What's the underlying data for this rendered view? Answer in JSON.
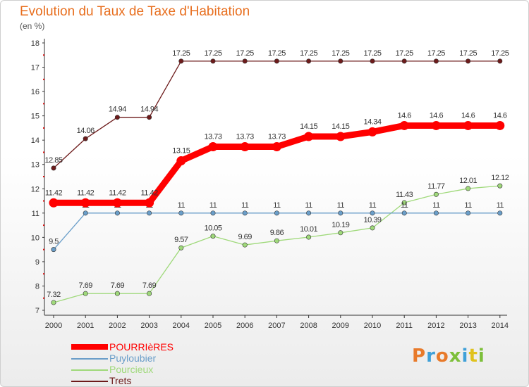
{
  "chart_data": {
    "type": "line",
    "title": "Evolution du Taux de Taxe d'Habitation",
    "ylabel": "(en %)",
    "xlabel": "",
    "categories": [
      "2000",
      "2001",
      "2002",
      "2003",
      "2004",
      "2005",
      "2006",
      "2007",
      "2008",
      "2009",
      "2010",
      "2011",
      "2012",
      "2013",
      "2014"
    ],
    "ylim": [
      7,
      18
    ],
    "yticks": [
      7,
      8,
      9,
      10,
      11,
      12,
      13,
      14,
      15,
      16,
      17,
      18
    ],
    "grid": false,
    "legend_position": "bottom-left",
    "series": [
      {
        "name": "Trets",
        "color": "#6d1b1b",
        "values": [
          12.85,
          14.06,
          14.94,
          14.94,
          17.25,
          17.25,
          17.25,
          17.25,
          17.25,
          17.25,
          17.25,
          17.25,
          17.25,
          17.25,
          17.25
        ],
        "labels": [
          "12.85",
          "14.06",
          "14.94",
          "14.94",
          "17.25",
          "17.25",
          "17.25",
          "17.25",
          "17.25",
          "17.25",
          "17.25",
          "17.25",
          "17.25",
          "17.25",
          "17.25"
        ]
      },
      {
        "name": "Pourcieux",
        "color": "#9fd97a",
        "values": [
          7.32,
          7.69,
          7.69,
          7.69,
          9.57,
          10.05,
          9.69,
          9.86,
          10.01,
          10.19,
          10.39,
          11.43,
          11.77,
          12.01,
          12.12
        ],
        "labels": [
          "7.32",
          "7.69",
          "7.69",
          "7.69",
          "9.57",
          "10.05",
          "9.69",
          "9.86",
          "10.01",
          "10.19",
          "10.39",
          "11.43",
          "11.77",
          "12.01",
          "12.12"
        ]
      },
      {
        "name": "Puyloubier",
        "color": "#6a9ec9",
        "values": [
          9.5,
          11,
          11,
          11,
          11,
          11,
          11,
          11,
          11,
          11,
          11,
          11,
          11,
          11,
          11
        ],
        "labels": [
          "9.5",
          "11",
          "11",
          "11",
          "11",
          "11",
          "11",
          "11",
          "11",
          "11",
          "11",
          "11",
          "11",
          "11",
          "11"
        ]
      },
      {
        "name": "POURRIèRES",
        "color": "#ff0000",
        "values": [
          11.42,
          11.42,
          11.42,
          11.42,
          13.15,
          13.73,
          13.73,
          13.73,
          14.15,
          14.15,
          14.34,
          14.6,
          14.6,
          14.6,
          14.6
        ],
        "labels": [
          "11.42",
          "11.42",
          "11.42",
          "11.42",
          "13.15",
          "13.73",
          "13.73",
          "13.73",
          "14.15",
          "14.15",
          "14.34",
          "14.6",
          "14.6",
          "14.6",
          "14.6"
        ]
      }
    ]
  },
  "legend": [
    {
      "name": "POURRIèRES",
      "color": "#ff0000"
    },
    {
      "name": "Puyloubier",
      "color": "#6a9ec9"
    },
    {
      "name": "Pourcieux",
      "color": "#9fd97a"
    },
    {
      "name": "Trets",
      "color": "#6d1b1b"
    }
  ],
  "logo": {
    "text": "Proxiti",
    "colors": [
      "#e87a2a",
      "#3fa0d8",
      "#e87a2a",
      "#7dbf3a",
      "#3fa0d8",
      "#e0c21e",
      "#7dbf3a"
    ]
  }
}
